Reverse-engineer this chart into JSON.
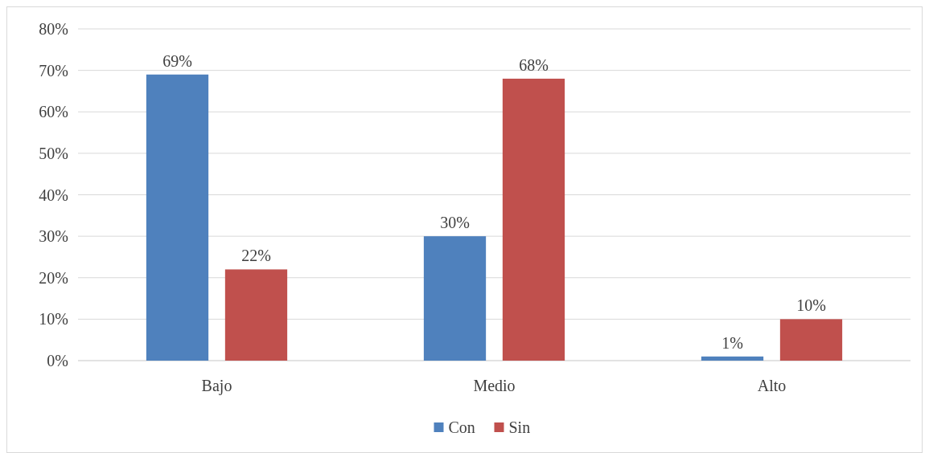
{
  "chart_data": {
    "type": "bar",
    "categories": [
      "Bajo",
      "Medio",
      "Alto"
    ],
    "series": [
      {
        "name": "Con",
        "color": "#4f81bd",
        "values": [
          69,
          30,
          1
        ],
        "value_labels": [
          "69%",
          "30%",
          "1%"
        ]
      },
      {
        "name": "Sin",
        "color": "#c0504d",
        "values": [
          22,
          68,
          10
        ],
        "value_labels": [
          "22%",
          "68%",
          "10%"
        ]
      }
    ],
    "ylim": [
      0,
      80
    ],
    "yticks": [
      {
        "value": 0,
        "label": "0%"
      },
      {
        "value": 10,
        "label": "10%"
      },
      {
        "value": 20,
        "label": "20%"
      },
      {
        "value": 30,
        "label": "30%"
      },
      {
        "value": 40,
        "label": "40%"
      },
      {
        "value": 50,
        "label": "50%"
      },
      {
        "value": 60,
        "label": "60%"
      },
      {
        "value": 70,
        "label": "70%"
      },
      {
        "value": 80,
        "label": "80%"
      }
    ],
    "grid": "y",
    "legend": "bottom"
  }
}
